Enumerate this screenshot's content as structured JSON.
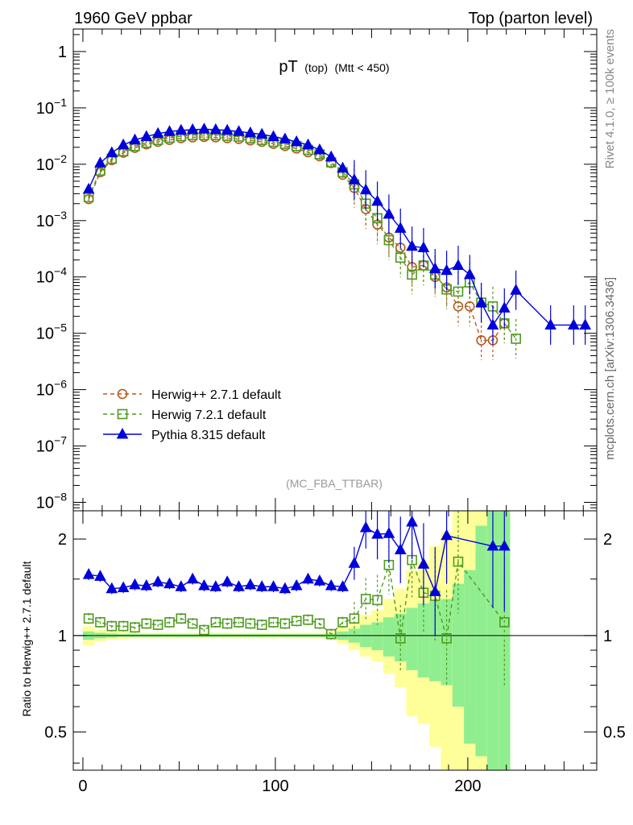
{
  "chart_data": {
    "type": "line",
    "header_left": "1960 GeV ppbar",
    "header_right": "Top (parton level)",
    "title_main": "pT",
    "title_sub": "(top)",
    "title_cut": "(Mtt < 450)",
    "analysis_label": "(MC_FBA_TTBAR)",
    "side_label_top": "Rivet 4.1.0, ≥ 100k events",
    "side_label_bottom": "mcplots.cern.ch [arXiv:1306.3436]",
    "x_ticks": [
      "0",
      "100",
      "200"
    ],
    "x_range": [
      -5,
      267
    ],
    "main_y_range_log10": [
      -8.15,
      0.4
    ],
    "main_y_ticks": [
      {
        "exp": 0,
        "base": "1",
        "sup": ""
      },
      {
        "exp": -1,
        "base": "10",
        "sup": "−1"
      },
      {
        "exp": -2,
        "base": "10",
        "sup": "−2"
      },
      {
        "exp": -3,
        "base": "10",
        "sup": "−3"
      },
      {
        "exp": -4,
        "base": "10",
        "sup": "−4"
      },
      {
        "exp": -5,
        "base": "10",
        "sup": "−5"
      },
      {
        "exp": -6,
        "base": "10",
        "sup": "−6"
      },
      {
        "exp": -7,
        "base": "10",
        "sup": "−7"
      },
      {
        "exp": -8,
        "base": "10",
        "sup": "−8"
      }
    ],
    "ratio_ylabel": "Ratio to Herwig++ 2.7.1 default",
    "ratio_y_range": [
      0.38,
      2.45
    ],
    "ratio_y_ticks": [
      "0.5",
      "1",
      "2"
    ],
    "legend": [
      {
        "name": "Herwig++ 2.7.1 default",
        "color": "#b35a1f",
        "marker": "circle",
        "dashed": true
      },
      {
        "name": "Herwig 7.2.1 default",
        "color": "#4e9a1f",
        "marker": "square",
        "dashed": true
      },
      {
        "name": "Pythia 8.315 default",
        "color": "#0000dd",
        "marker": "triangle",
        "dashed": false
      }
    ],
    "series": [
      {
        "name": "Herwig++ 2.7.1 default",
        "color": "#b35a1f",
        "x": [
          3,
          9,
          15,
          21,
          27,
          33,
          39,
          45,
          51,
          57,
          63,
          69,
          75,
          81,
          87,
          93,
          99,
          105,
          111,
          117,
          123,
          129,
          135,
          141,
          147,
          153,
          159,
          165,
          171,
          177,
          183,
          189,
          195,
          201,
          207,
          213,
          219
        ],
        "y": [
          0.0024,
          0.0072,
          0.0118,
          0.016,
          0.0195,
          0.0225,
          0.025,
          0.027,
          0.029,
          0.03,
          0.0305,
          0.03,
          0.029,
          0.028,
          0.0265,
          0.025,
          0.023,
          0.021,
          0.019,
          0.0163,
          0.0138,
          0.0105,
          0.0065,
          0.0038,
          0.0016,
          0.00085,
          0.0005,
          0.00033,
          0.00015,
          0.00016,
          0.0001,
          6.5e-05,
          3e-05,
          3e-05,
          7.5e-06,
          7.5e-06,
          1.5e-05
        ]
      },
      {
        "name": "Herwig 7.2.1 default",
        "color": "#4e9a1f",
        "x": [
          3,
          9,
          15,
          21,
          27,
          33,
          39,
          45,
          51,
          57,
          63,
          69,
          75,
          81,
          87,
          93,
          99,
          105,
          111,
          117,
          123,
          129,
          135,
          141,
          147,
          153,
          159,
          165,
          171,
          177,
          183,
          189,
          195,
          201,
          207,
          213,
          219,
          225
        ],
        "y": [
          0.0026,
          0.0077,
          0.0125,
          0.017,
          0.021,
          0.024,
          0.027,
          0.0295,
          0.0315,
          0.033,
          0.033,
          0.033,
          0.032,
          0.031,
          0.029,
          0.027,
          0.025,
          0.023,
          0.021,
          0.018,
          0.015,
          0.0108,
          0.0072,
          0.0044,
          0.002,
          0.0011,
          0.00045,
          0.00022,
          0.00011,
          0.00016,
          0.00011,
          6e-05,
          5.5e-05,
          8e-05,
          3.5e-05,
          3e-05,
          1.5e-05,
          8e-06
        ]
      },
      {
        "name": "Pythia 8.315 default",
        "color": "#0000dd",
        "x": [
          3,
          9,
          15,
          21,
          27,
          33,
          39,
          45,
          51,
          57,
          63,
          69,
          75,
          81,
          87,
          93,
          99,
          105,
          111,
          117,
          123,
          129,
          135,
          141,
          147,
          153,
          159,
          165,
          171,
          177,
          183,
          189,
          195,
          201,
          207,
          213,
          219,
          225,
          243,
          255,
          261
        ],
        "y": [
          0.0036,
          0.0105,
          0.016,
          0.022,
          0.027,
          0.031,
          0.035,
          0.038,
          0.04,
          0.041,
          0.042,
          0.041,
          0.04,
          0.038,
          0.036,
          0.034,
          0.031,
          0.028,
          0.025,
          0.022,
          0.018,
          0.0135,
          0.0085,
          0.0053,
          0.0035,
          0.0022,
          0.0013,
          0.00073,
          0.00035,
          0.00033,
          0.00014,
          0.00013,
          0.00016,
          0.00011,
          3.5e-05,
          1.4e-05,
          2.8e-05,
          5.8e-05,
          1.4e-05,
          1.4e-05,
          1.4e-05
        ]
      }
    ],
    "ratio_series": [
      {
        "name": "Herwig 7.2.1 default",
        "color": "#4e9a1f",
        "x": [
          3,
          9,
          15,
          21,
          27,
          33,
          39,
          45,
          51,
          57,
          63,
          69,
          75,
          81,
          87,
          93,
          99,
          105,
          111,
          117,
          123,
          129,
          135,
          141,
          147,
          153,
          159,
          165,
          171,
          177,
          183,
          189,
          195,
          219
        ],
        "y": [
          1.13,
          1.1,
          1.07,
          1.07,
          1.06,
          1.09,
          1.08,
          1.1,
          1.13,
          1.09,
          1.04,
          1.1,
          1.09,
          1.1,
          1.09,
          1.08,
          1.1,
          1.09,
          1.11,
          1.12,
          1.09,
          1.01,
          1.1,
          1.13,
          1.3,
          1.29,
          1.66,
          0.98,
          1.72,
          1.36,
          1.33,
          0.98,
          1.7,
          1.1
        ]
      },
      {
        "name": "Pythia 8.315 default",
        "color": "#0000dd",
        "x": [
          3,
          9,
          15,
          21,
          27,
          33,
          39,
          45,
          51,
          57,
          63,
          69,
          75,
          81,
          87,
          93,
          99,
          105,
          111,
          117,
          123,
          129,
          135,
          141,
          147,
          153,
          159,
          165,
          171,
          177,
          183,
          189,
          213,
          219
        ],
        "y": [
          1.55,
          1.53,
          1.4,
          1.41,
          1.44,
          1.43,
          1.47,
          1.45,
          1.42,
          1.5,
          1.43,
          1.42,
          1.47,
          1.42,
          1.44,
          1.42,
          1.42,
          1.4,
          1.43,
          1.5,
          1.48,
          1.43,
          1.42,
          1.68,
          2.17,
          2.07,
          2.08,
          1.85,
          2.26,
          1.67,
          1.37,
          2.05,
          1.9,
          1.9
        ]
      }
    ],
    "uncertainty_bands": {
      "x_edges": [
        0,
        6,
        12,
        18,
        24,
        30,
        36,
        42,
        48,
        54,
        60,
        66,
        72,
        78,
        84,
        90,
        96,
        102,
        108,
        114,
        120,
        126,
        132,
        138,
        144,
        150,
        156,
        162,
        168,
        174,
        180,
        186,
        192,
        198,
        204,
        210,
        216,
        222
      ],
      "green_lo": [
        0.97,
        0.98,
        0.985,
        0.99,
        0.99,
        0.99,
        0.99,
        0.99,
        0.99,
        0.99,
        0.99,
        0.99,
        0.99,
        0.99,
        0.99,
        0.99,
        0.99,
        0.99,
        0.99,
        0.99,
        0.99,
        0.985,
        0.97,
        0.95,
        0.92,
        0.9,
        0.86,
        0.83,
        0.78,
        0.74,
        0.72,
        0.7,
        0.6,
        0.46,
        0.42,
        0.38,
        0.38
      ],
      "green_hi": [
        1.03,
        1.02,
        1.015,
        1.01,
        1.01,
        1.01,
        1.01,
        1.01,
        1.01,
        1.01,
        1.01,
        1.01,
        1.01,
        1.01,
        1.01,
        1.01,
        1.01,
        1.01,
        1.01,
        1.01,
        1.01,
        1.015,
        1.03,
        1.05,
        1.08,
        1.1,
        1.14,
        1.17,
        1.22,
        1.26,
        1.28,
        1.3,
        1.45,
        1.6,
        2.2,
        2.45,
        2.45
      ],
      "yellow_lo": [
        0.93,
        0.96,
        0.97,
        0.975,
        0.98,
        0.98,
        0.98,
        0.98,
        0.98,
        0.98,
        0.98,
        0.98,
        0.98,
        0.98,
        0.98,
        0.98,
        0.98,
        0.98,
        0.98,
        0.98,
        0.98,
        0.97,
        0.94,
        0.9,
        0.86,
        0.83,
        0.76,
        0.69,
        0.56,
        0.53,
        0.45,
        0.38,
        0.38,
        0.38,
        0.38,
        0.38,
        0.38
      ],
      "yellow_hi": [
        1.07,
        1.04,
        1.03,
        1.025,
        1.02,
        1.02,
        1.02,
        1.02,
        1.02,
        1.02,
        1.02,
        1.02,
        1.02,
        1.02,
        1.02,
        1.02,
        1.02,
        1.02,
        1.02,
        1.02,
        1.02,
        1.03,
        1.06,
        1.1,
        1.16,
        1.2,
        1.3,
        1.4,
        1.6,
        1.7,
        1.9,
        2.1,
        2.45,
        2.45,
        2.45,
        2.45,
        2.45
      ],
      "green_color": "#90ee90",
      "yellow_color": "#ffff99"
    }
  }
}
